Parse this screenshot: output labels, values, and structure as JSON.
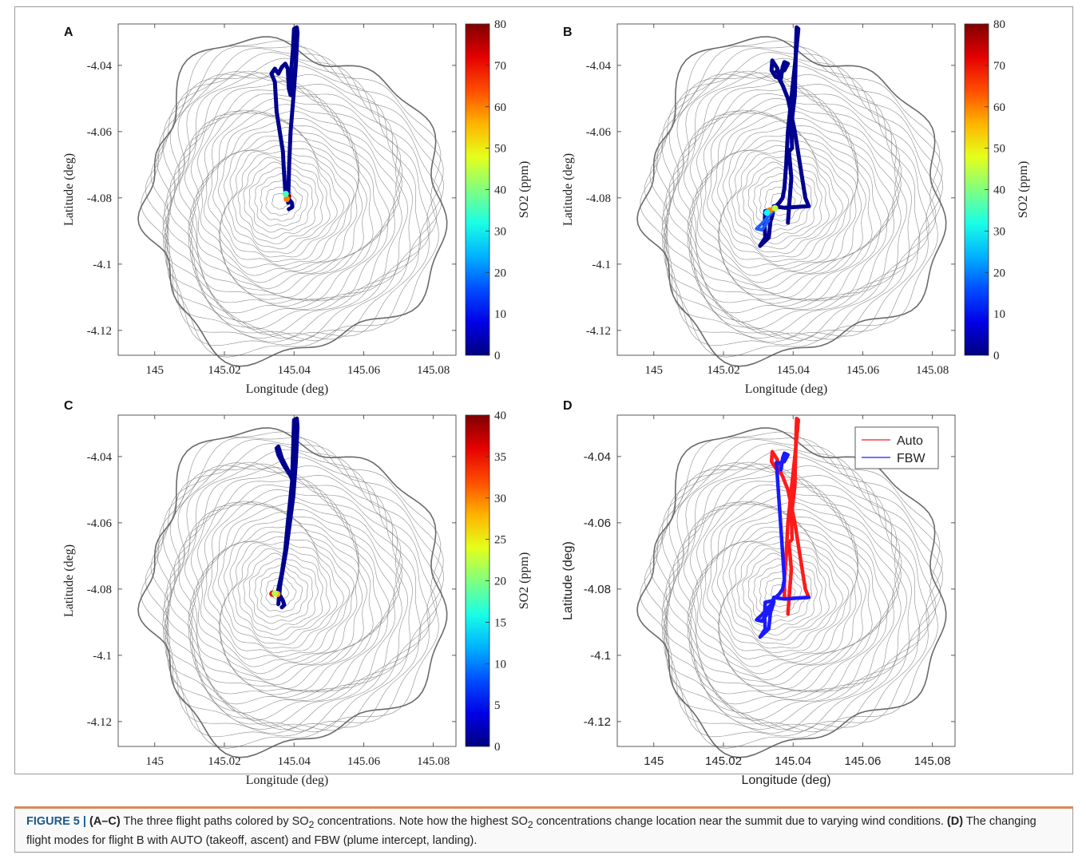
{
  "caption": {
    "figure_label": "FIGURE 5 |",
    "panel_ac": "(A–C)",
    "text1": "The three flight paths colored by SO",
    "sub1": "2",
    "text2": " concentrations. Note how the highest SO",
    "sub2": "2",
    "text3": " concentrations change location near the summit due to varying wind conditions. ",
    "panel_d": "(D)",
    "text4": " The changing flight modes for flight B with AUTO (takeoff, ascent) and FBW (plume intercept, landing)."
  },
  "chart_data": [
    {
      "panel": "A",
      "type": "line",
      "xlabel": "Longitude (deg)",
      "ylabel": "Latitude (deg)",
      "xticks": [
        145,
        145.02,
        145.04,
        145.06,
        145.08
      ],
      "yticks": [
        -4.04,
        -4.06,
        -4.08,
        -4.1,
        -4.12
      ],
      "ytick_labels": [
        "-4.04",
        "-4.06",
        "-4.08",
        "-4.1",
        "-4.12"
      ],
      "xlim": [
        144.9895,
        145.0865
      ],
      "ylim": [
        -4.1275,
        -4.0275
      ],
      "colorbar": {
        "label": "SO2 (ppm)",
        "min": 0,
        "max": 80,
        "ticks": [
          0,
          10,
          20,
          30,
          40,
          50,
          60,
          70,
          80
        ]
      },
      "track_color": "#00008f",
      "path": [
        [
          145.0385,
          -4.0834
        ],
        [
          145.0395,
          -4.0828
        ],
        [
          145.0394,
          -4.0815
        ],
        [
          145.0386,
          -4.0805
        ],
        [
          145.038,
          -4.0795
        ],
        [
          145.0375,
          -4.078
        ],
        [
          145.037,
          -4.07
        ],
        [
          145.0368,
          -4.066
        ],
        [
          145.035,
          -4.054
        ],
        [
          145.0345,
          -4.045
        ],
        [
          145.0335,
          -4.0425
        ],
        [
          145.0345,
          -4.041
        ],
        [
          145.0355,
          -4.0425
        ],
        [
          145.0365,
          -4.0405
        ],
        [
          145.0375,
          -4.0395
        ],
        [
          145.0382,
          -4.041
        ],
        [
          145.0385,
          -4.047
        ],
        [
          145.039,
          -4.049
        ],
        [
          145.0393,
          -4.04
        ],
        [
          145.0397,
          -4.035
        ],
        [
          145.04,
          -4.029
        ],
        [
          145.0408,
          -4.0285
        ],
        [
          145.041,
          -4.03
        ],
        [
          145.0405,
          -4.04
        ],
        [
          145.0398,
          -4.05
        ],
        [
          145.039,
          -4.06
        ],
        [
          145.0386,
          -4.07
        ],
        [
          145.0384,
          -4.078
        ],
        [
          145.0383,
          -4.0815
        ]
      ],
      "hotspots": [
        {
          "lon": 145.0383,
          "lat": -4.0795,
          "so2": 80
        },
        {
          "lon": 145.0379,
          "lat": -4.0803,
          "so2": 60
        },
        {
          "lon": 145.0376,
          "lat": -4.0788,
          "so2": 35
        }
      ]
    },
    {
      "panel": "B",
      "type": "line",
      "xlabel": "Longitude (deg)",
      "ylabel": "Latitude (deg)",
      "xticks": [
        145,
        145.02,
        145.04,
        145.06,
        145.08
      ],
      "yticks": [
        -4.04,
        -4.06,
        -4.08,
        -4.1,
        -4.12
      ],
      "ytick_labels": [
        "-4.04",
        "-4.06",
        "-4.08",
        "-4.1",
        "-4.12"
      ],
      "xlim": [
        144.9895,
        145.0865
      ],
      "ylim": [
        -4.1275,
        -4.0275
      ],
      "colorbar": {
        "label": "SO2 (ppm)",
        "min": 0,
        "max": 80,
        "ticks": [
          0,
          10,
          20,
          30,
          40,
          50,
          60,
          70,
          80
        ]
      },
      "track_color": "#00008f",
      "path": [
        [
          145.0385,
          -4.0875
        ],
        [
          145.039,
          -4.0805
        ],
        [
          145.0395,
          -4.074
        ],
        [
          145.0388,
          -4.066
        ],
        [
          145.0397,
          -4.065
        ],
        [
          145.0395,
          -4.058
        ],
        [
          145.0405,
          -4.049
        ],
        [
          145.0408,
          -4.035
        ],
        [
          145.041,
          -4.0285
        ],
        [
          145.0415,
          -4.029
        ],
        [
          145.0405,
          -4.04
        ],
        [
          145.0395,
          -4.05
        ],
        [
          145.0385,
          -4.06
        ],
        [
          145.038,
          -4.07
        ],
        [
          145.0375,
          -4.077
        ],
        [
          145.037,
          -4.08
        ],
        [
          145.036,
          -4.0815
        ],
        [
          145.034,
          -4.0835
        ],
        [
          145.032,
          -4.084
        ],
        [
          145.0318,
          -4.088
        ],
        [
          145.032,
          -4.092
        ],
        [
          145.0305,
          -4.0945
        ],
        [
          145.033,
          -4.092
        ],
        [
          145.0335,
          -4.087
        ],
        [
          145.034,
          -4.0855
        ],
        [
          145.0345,
          -4.0825
        ],
        [
          145.0375,
          -4.083
        ],
        [
          145.0445,
          -4.0825
        ],
        [
          145.0435,
          -4.08
        ],
        [
          145.042,
          -4.07
        ],
        [
          145.0405,
          -4.06
        ],
        [
          145.0385,
          -4.05
        ],
        [
          145.037,
          -4.046
        ],
        [
          145.036,
          -4.044
        ],
        [
          145.0355,
          -4.041
        ],
        [
          145.034,
          -4.0385
        ],
        [
          145.0338,
          -4.0415
        ],
        [
          145.035,
          -4.0435
        ],
        [
          145.0365,
          -4.044
        ],
        [
          145.037,
          -4.0405
        ],
        [
          145.0375,
          -4.039
        ],
        [
          145.0385,
          -4.0395
        ],
        [
          145.0375,
          -4.0415
        ],
        [
          145.036,
          -4.042
        ],
        [
          145.0352,
          -4.0418
        ]
      ],
      "secondary_path": [
        [
          145.0345,
          -4.0838
        ],
        [
          145.0325,
          -4.086
        ],
        [
          145.031,
          -4.0878
        ],
        [
          145.0295,
          -4.0893
        ],
        [
          145.031,
          -4.0897
        ],
        [
          145.033,
          -4.0868
        ]
      ],
      "hotspots": [
        {
          "lon": 145.0333,
          "lat": -4.0838,
          "so2": 60
        },
        {
          "lon": 145.0348,
          "lat": -4.0831,
          "so2": 45
        },
        {
          "lon": 145.0325,
          "lat": -4.0845,
          "so2": 30
        }
      ]
    },
    {
      "panel": "C",
      "type": "line",
      "xlabel": "Longitude (deg)",
      "ylabel": "Latitude (deg)",
      "xticks": [
        145,
        145.02,
        145.04,
        145.06,
        145.08
      ],
      "yticks": [
        -4.04,
        -4.06,
        -4.08,
        -4.1,
        -4.12
      ],
      "ytick_labels": [
        "-4.04",
        "-4.06",
        "-4.08",
        "-4.1",
        "-4.12"
      ],
      "xlim": [
        144.9895,
        145.0865
      ],
      "ylim": [
        -4.1275,
        -4.0275
      ],
      "colorbar": {
        "label": "SO2 (ppm)",
        "min": 0,
        "max": 40,
        "ticks": [
          0,
          5,
          10,
          15,
          20,
          25,
          30,
          35,
          40
        ]
      },
      "track_color": "#00008f",
      "path": [
        [
          145.0365,
          -4.0855
        ],
        [
          145.0372,
          -4.0848
        ],
        [
          145.0368,
          -4.0835
        ],
        [
          145.036,
          -4.082
        ],
        [
          145.0352,
          -4.0815
        ],
        [
          145.0365,
          -4.075
        ],
        [
          145.0375,
          -4.068
        ],
        [
          145.0382,
          -4.06
        ],
        [
          145.039,
          -4.052
        ],
        [
          145.0395,
          -4.047
        ],
        [
          145.0382,
          -4.044
        ],
        [
          145.0365,
          -4.0405
        ],
        [
          145.0355,
          -4.037
        ],
        [
          145.035,
          -4.0375
        ],
        [
          145.0355,
          -4.0395
        ],
        [
          145.037,
          -4.0425
        ],
        [
          145.0385,
          -4.045
        ],
        [
          145.0395,
          -4.0455
        ],
        [
          145.0398,
          -4.036
        ],
        [
          145.04,
          -4.029
        ],
        [
          145.0408,
          -4.0285
        ],
        [
          145.041,
          -4.031
        ],
        [
          145.0405,
          -4.042
        ],
        [
          145.0398,
          -4.052
        ],
        [
          145.0388,
          -4.06
        ],
        [
          145.0378,
          -4.068
        ],
        [
          145.0368,
          -4.074
        ],
        [
          145.036,
          -4.079
        ],
        [
          145.0355,
          -4.0845
        ]
      ],
      "hotspots": [
        {
          "lon": 145.0338,
          "lat": -4.0814,
          "so2": 35
        },
        {
          "lon": 145.0352,
          "lat": -4.0815,
          "so2": 28
        },
        {
          "lon": 145.0345,
          "lat": -4.0813,
          "so2": 22
        }
      ]
    },
    {
      "panel": "D",
      "type": "line",
      "xlabel": "Longitude (deg)",
      "ylabel": "Latitude (deg)",
      "xticks": [
        145,
        145.02,
        145.04,
        145.06,
        145.08
      ],
      "yticks": [
        -4.04,
        -4.06,
        -4.08,
        -4.1,
        -4.12
      ],
      "ytick_labels": [
        "-4.04",
        "-4.06",
        "-4.08",
        "-4.1",
        "-4.12"
      ],
      "xlim": [
        144.9895,
        145.0865
      ],
      "ylim": [
        -4.1275,
        -4.0275
      ],
      "legend": {
        "placement": "top-right",
        "entries": [
          {
            "name": "Auto",
            "color": "#ff1a1a"
          },
          {
            "name": "FBW",
            "color": "#1a1aff"
          }
        ]
      },
      "series": [
        {
          "name": "Auto",
          "color": "#ff1a1a",
          "values": [
            [
              145.0385,
              -4.0875
            ],
            [
              145.039,
              -4.0805
            ],
            [
              145.0395,
              -4.074
            ],
            [
              145.0388,
              -4.066
            ],
            [
              145.0397,
              -4.065
            ],
            [
              145.0395,
              -4.058
            ],
            [
              145.0405,
              -4.049
            ],
            [
              145.0408,
              -4.035
            ],
            [
              145.041,
              -4.0285
            ],
            [
              145.0415,
              -4.029
            ],
            [
              145.0405,
              -4.04
            ],
            [
              145.0395,
              -4.05
            ],
            [
              145.0385,
              -4.06
            ],
            [
              145.038,
              -4.07
            ],
            [
              145.0375,
              -4.077
            ],
            [
              145.0375,
              -4.083
            ],
            [
              145.0445,
              -4.0825
            ],
            [
              145.0435,
              -4.08
            ],
            [
              145.042,
              -4.07
            ],
            [
              145.0405,
              -4.06
            ],
            [
              145.0385,
              -4.05
            ],
            [
              145.037,
              -4.046
            ],
            [
              145.036,
              -4.044
            ],
            [
              145.0355,
              -4.041
            ],
            [
              145.034,
              -4.0385
            ],
            [
              145.0338,
              -4.0415
            ],
            [
              145.035,
              -4.0435
            ],
            [
              145.0365,
              -4.044
            ]
          ]
        },
        {
          "name": "FBW",
          "color": "#1a1aff",
          "values": [
            [
              145.0365,
              -4.044
            ],
            [
              145.037,
              -4.0405
            ],
            [
              145.0375,
              -4.039
            ],
            [
              145.0385,
              -4.0395
            ],
            [
              145.0375,
              -4.0415
            ],
            [
              145.036,
              -4.042
            ],
            [
              145.0352,
              -4.0418
            ],
            [
              145.0375,
              -4.077
            ],
            [
              145.037,
              -4.08
            ],
            [
              145.036,
              -4.0815
            ],
            [
              145.034,
              -4.0835
            ],
            [
              145.032,
              -4.084
            ],
            [
              145.0318,
              -4.088
            ],
            [
              145.032,
              -4.092
            ],
            [
              145.0305,
              -4.0945
            ],
            [
              145.033,
              -4.092
            ],
            [
              145.0335,
              -4.087
            ],
            [
              145.034,
              -4.0855
            ],
            [
              145.0345,
              -4.0838
            ],
            [
              145.0325,
              -4.086
            ],
            [
              145.031,
              -4.0878
            ],
            [
              145.0295,
              -4.0893
            ],
            [
              145.031,
              -4.0897
            ],
            [
              145.033,
              -4.0868
            ],
            [
              145.0345,
              -4.0825
            ],
            [
              145.0375,
              -4.083
            ],
            [
              145.0445,
              -4.0825
            ]
          ]
        }
      ]
    }
  ]
}
